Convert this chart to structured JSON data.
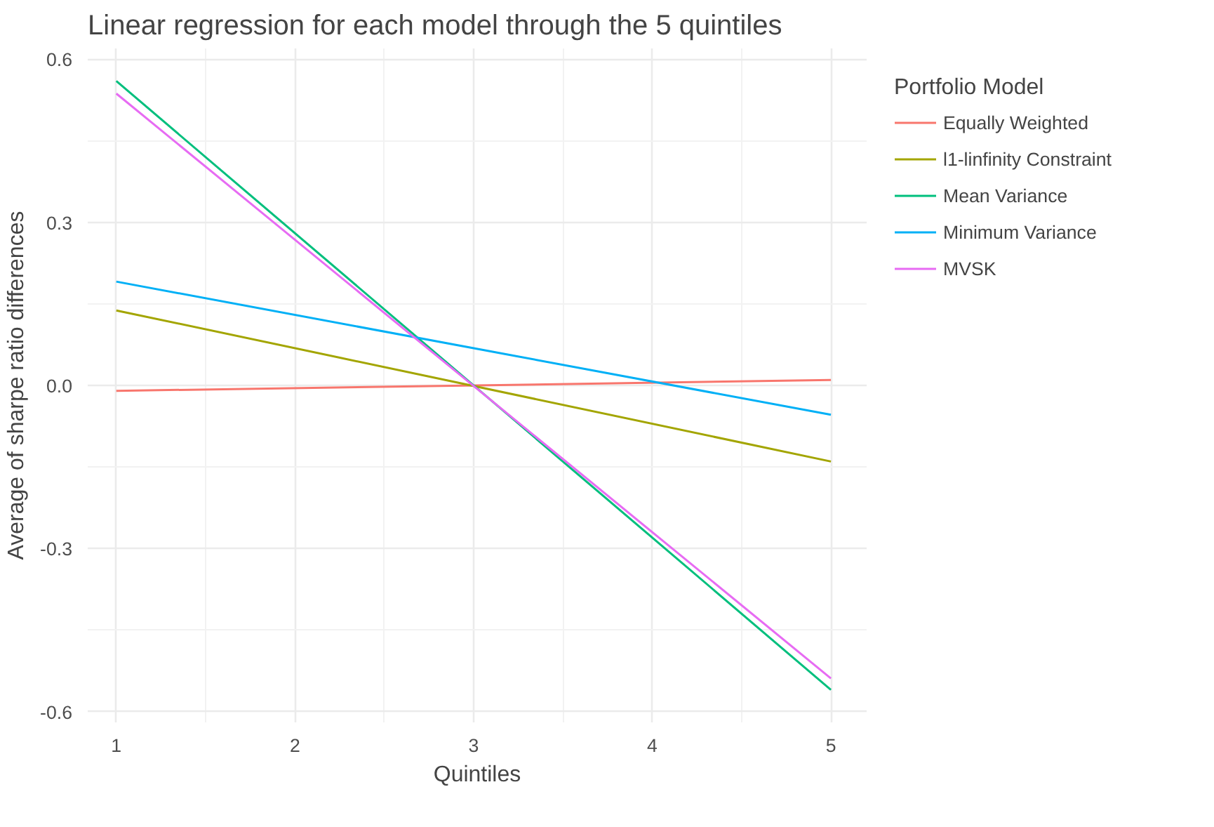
{
  "chart_data": {
    "type": "line",
    "title": "Linear regression for each model through the 5 quintiles",
    "xlabel": "Quintiles",
    "ylabel": "Average of sharpe ratio differences",
    "legend_title": "Portfolio Model",
    "xlim": [
      0.84,
      5.2
    ],
    "ylim": [
      -0.62,
      0.62
    ],
    "xticks": [
      1,
      2,
      3,
      4,
      5
    ],
    "yticks": [
      {
        "value": -0.6,
        "label": "-0.6"
      },
      {
        "value": -0.3,
        "label": "-0.3"
      },
      {
        "value": 0,
        "label": "0.0"
      },
      {
        "value": 0.3,
        "label": "0.3"
      },
      {
        "value": 0.6,
        "label": "0.6"
      }
    ],
    "x": [
      1,
      5
    ],
    "grid": true,
    "legend": "right",
    "line_style": "solid",
    "series": [
      {
        "name": "Equally Weighted",
        "color": "#f8766d",
        "values": [
          -0.01,
          0.01
        ]
      },
      {
        "name": "l1-linfinity Constraint",
        "color": "#a3a500",
        "values": [
          0.138,
          -0.14
        ]
      },
      {
        "name": "Mean Variance",
        "color": "#00bf7d",
        "values": [
          0.56,
          -0.56
        ]
      },
      {
        "name": "Minimum Variance",
        "color": "#00b0f6",
        "values": [
          0.191,
          -0.054
        ]
      },
      {
        "name": "MVSK",
        "color": "#e76bf3",
        "values": [
          0.537,
          -0.539
        ]
      }
    ]
  }
}
